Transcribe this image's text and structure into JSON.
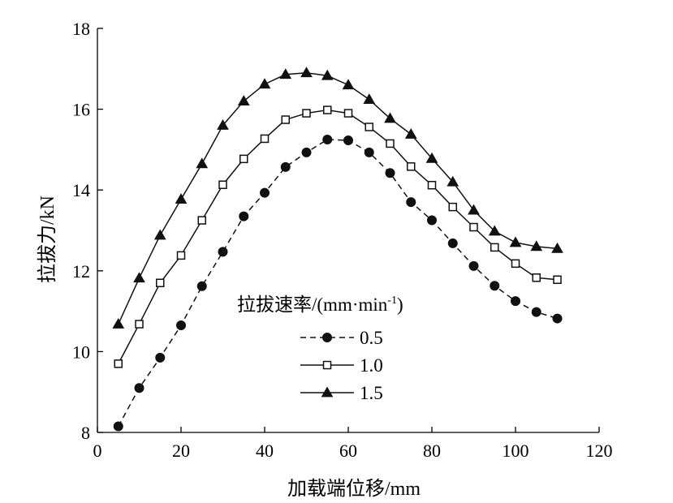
{
  "chart_data": {
    "type": "line",
    "xlabel": "加载端位移/mm",
    "ylabel": "拉拔力/kN",
    "xlim": [
      0,
      120
    ],
    "ylim": [
      8,
      18
    ],
    "xticks": [
      0,
      20,
      40,
      60,
      80,
      100,
      120
    ],
    "yticks": [
      8,
      10,
      12,
      14,
      16,
      18
    ],
    "grid": false,
    "legend": {
      "title": "拉拔速率/(mm·min",
      "title_sup": "-1",
      "title_end": ")",
      "position": "center-right"
    },
    "x": [
      5,
      10,
      15,
      20,
      25,
      30,
      35,
      40,
      45,
      50,
      55,
      60,
      65,
      70,
      75,
      80,
      85,
      90,
      95,
      100,
      105,
      110
    ],
    "series": [
      {
        "name": "0.5",
        "marker": "filled-circle",
        "line": "dashed",
        "values": [
          8.15,
          9.1,
          9.85,
          10.65,
          11.62,
          12.47,
          13.35,
          13.93,
          14.57,
          14.93,
          15.25,
          15.23,
          14.93,
          14.42,
          13.7,
          13.25,
          12.68,
          12.12,
          11.63,
          11.25,
          10.98,
          10.82
        ]
      },
      {
        "name": "1.0",
        "marker": "open-square",
        "line": "solid",
        "values": [
          9.7,
          10.68,
          11.7,
          12.38,
          13.25,
          14.13,
          14.77,
          15.27,
          15.74,
          15.9,
          15.98,
          15.9,
          15.56,
          15.15,
          14.58,
          14.12,
          13.58,
          13.08,
          12.58,
          12.18,
          11.83,
          11.78
        ]
      },
      {
        "name": "1.5",
        "marker": "filled-triangle",
        "line": "solid",
        "values": [
          10.68,
          11.82,
          12.88,
          13.77,
          14.65,
          15.6,
          16.2,
          16.62,
          16.86,
          16.9,
          16.83,
          16.6,
          16.24,
          15.77,
          15.38,
          14.78,
          14.2,
          13.5,
          12.98,
          12.7,
          12.6,
          12.55
        ]
      }
    ]
  }
}
